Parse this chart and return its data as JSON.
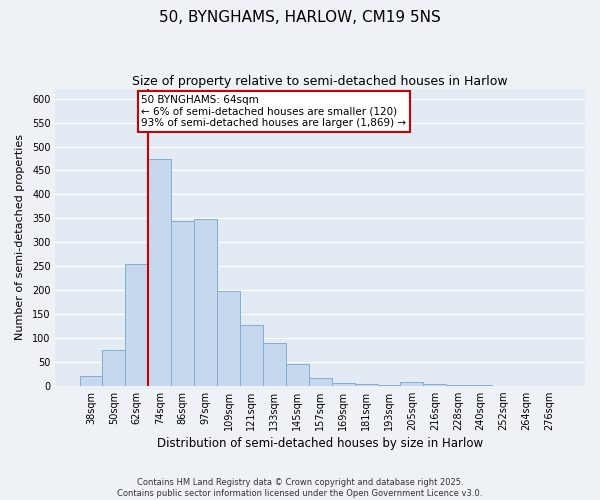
{
  "title": "50, BYNGHAMS, HARLOW, CM19 5NS",
  "subtitle": "Size of property relative to semi-detached houses in Harlow",
  "xlabel": "Distribution of semi-detached houses by size in Harlow",
  "ylabel": "Number of semi-detached properties",
  "bin_labels": [
    "38sqm",
    "50sqm",
    "62sqm",
    "74sqm",
    "86sqm",
    "97sqm",
    "109sqm",
    "121sqm",
    "133sqm",
    "145sqm",
    "157sqm",
    "169sqm",
    "181sqm",
    "193sqm",
    "205sqm",
    "216sqm",
    "228sqm",
    "240sqm",
    "252sqm",
    "264sqm",
    "276sqm"
  ],
  "bar_values": [
    20,
    75,
    255,
    475,
    345,
    348,
    198,
    127,
    90,
    46,
    16,
    6,
    4,
    2,
    8,
    3,
    1,
    1,
    0,
    0,
    0
  ],
  "bar_color": "#c5d8ed",
  "bar_edge_color": "#7fafd4",
  "vline_color": "#cc0000",
  "vline_x_index": 2.5,
  "annotation_title": "50 BYNGHAMS: 64sqm",
  "annotation_line1": "← 6% of semi-detached houses are smaller (120)",
  "annotation_line2": "93% of semi-detached houses are larger (1,869) →",
  "annotation_box_color": "#ffffff",
  "annotation_box_edge": "#cc0000",
  "ylim": [
    0,
    620
  ],
  "yticks": [
    0,
    50,
    100,
    150,
    200,
    250,
    300,
    350,
    400,
    450,
    500,
    550,
    600
  ],
  "footer_line1": "Contains HM Land Registry data © Crown copyright and database right 2025.",
  "footer_line2": "Contains public sector information licensed under the Open Government Licence v3.0.",
  "bg_color": "#eef2f7",
  "plot_bg_color": "#e2eaf3",
  "grid_color": "#ffffff",
  "title_fontsize": 11,
  "subtitle_fontsize": 9,
  "xlabel_fontsize": 8.5,
  "ylabel_fontsize": 8,
  "tick_fontsize": 7,
  "annot_fontsize": 7.5
}
